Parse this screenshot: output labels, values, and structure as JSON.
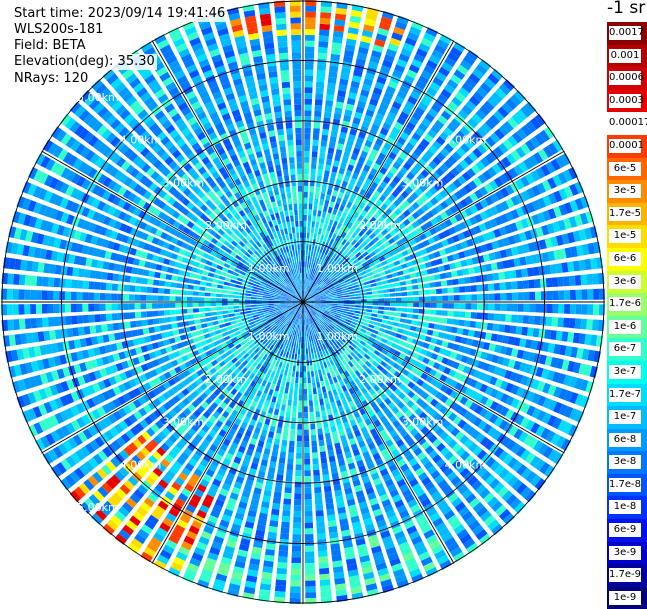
{
  "info": {
    "start_time": "Start time: 2023/09/14 19:41:46",
    "device": "WLS200s-181",
    "field": "Field: BETA",
    "elevation": "Elevation(deg): 35.30",
    "nrays": "NRays: 120"
  },
  "colorbar": {
    "title": "-1 sr",
    "levels": [
      {
        "label": "0.0017",
        "color": "#8b0000"
      },
      {
        "label": "0.001",
        "color": "#b30000"
      },
      {
        "label": "0.0006",
        "color": "#d10000"
      },
      {
        "label": "0.0003",
        "color": "#e60000"
      },
      {
        "label": "0.00017",
        "color": "#ffffff"
      },
      {
        "label": "0.0001",
        "color": "#ff3c00"
      },
      {
        "label": "6e-5",
        "color": "#ff6600"
      },
      {
        "label": "3e-5",
        "color": "#ff8c00"
      },
      {
        "label": "1.7e-5",
        "color": "#ffb300"
      },
      {
        "label": "1e-5",
        "color": "#ffdd00"
      },
      {
        "label": "6e-6",
        "color": "#ffff00"
      },
      {
        "label": "3e-6",
        "color": "#ccff33"
      },
      {
        "label": "1.7e-6",
        "color": "#99ff66"
      },
      {
        "label": "1e-6",
        "color": "#66ff99"
      },
      {
        "label": "6e-7",
        "color": "#33ffcc"
      },
      {
        "label": "3e-7",
        "color": "#00ffee"
      },
      {
        "label": "1.7e-7",
        "color": "#00ddff"
      },
      {
        "label": "1e-7",
        "color": "#00bbff"
      },
      {
        "label": "6e-8",
        "color": "#0099ff"
      },
      {
        "label": "3e-8",
        "color": "#0077ff"
      },
      {
        "label": "1.7e-8",
        "color": "#0055ff"
      },
      {
        "label": "1e-8",
        "color": "#0033ff"
      },
      {
        "label": "6e-9",
        "color": "#0011ee"
      },
      {
        "label": "3e-9",
        "color": "#0000cc"
      },
      {
        "label": "1.7e-9",
        "color": "#0000a0"
      },
      {
        "label": "1e-9",
        "color": "#00007a"
      }
    ]
  },
  "chart_data": {
    "type": "heatmap",
    "projection": "polar-ppi",
    "field": "BETA",
    "units": "-1 sr",
    "nrays": 120,
    "max_range_km": 5.0,
    "range_ring_labels": [
      "1.00km",
      "2.00km",
      "3.00km",
      "4.00km",
      "5.00km"
    ],
    "range_rings_km": [
      1,
      2,
      3,
      4,
      5
    ],
    "azimuth_spokes_deg": [
      0,
      30,
      60,
      90,
      120,
      150,
      180,
      210,
      240,
      270,
      300,
      330
    ],
    "grid": true,
    "background_level": "1e-8 to 1.7e-7",
    "features": [
      {
        "description": "high backscatter band",
        "azimuth_deg_range": [
          345,
          20
        ],
        "range_km_range": [
          4.4,
          5.1
        ],
        "level": "3e-5 to 0.0003"
      },
      {
        "description": "high backscatter band",
        "azimuth_deg_range": [
          205,
          230
        ],
        "range_km_range": [
          3.4,
          5.0
        ],
        "level": "3e-6 to 0.0001"
      }
    ],
    "colorbar_levels": [
      "0.0017",
      "0.001",
      "0.0006",
      "0.0003",
      "0.00017",
      "0.0001",
      "6e-5",
      "3e-5",
      "1.7e-5",
      "1e-5",
      "6e-6",
      "3e-6",
      "1.7e-6",
      "1e-6",
      "6e-7",
      "3e-7",
      "1.7e-7",
      "1e-7",
      "6e-8",
      "3e-8",
      "1.7e-8",
      "1e-8",
      "6e-9",
      "3e-9",
      "1.7e-9",
      "1e-9"
    ]
  }
}
